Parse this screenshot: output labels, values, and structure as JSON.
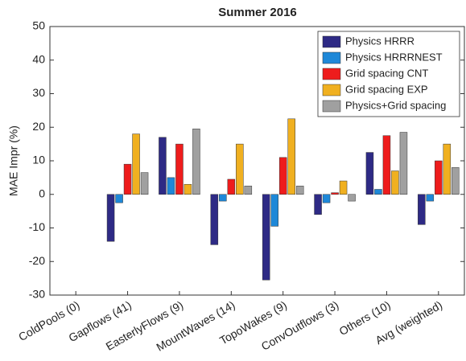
{
  "chart_data": {
    "type": "bar",
    "title": "Summer 2016",
    "y_label": "MAE Impr (%)",
    "categories": [
      "ColdPools (0)",
      "Gapflows (41)",
      "EasterlyFlows (9)",
      "MountWaves (14)",
      "TopoWakes (9)",
      "ConvOutflows (3)",
      "Others (10)",
      "Avg (weighted)"
    ],
    "series": [
      {
        "name": "Physics HRRR",
        "color": "#2e2a85",
        "values": [
          0,
          -14,
          17,
          -15,
          -25.5,
          -6,
          12.5,
          -9
        ]
      },
      {
        "name": "Physics HRRRNEST",
        "color": "#1e88d8",
        "values": [
          0,
          -2.5,
          5,
          -2,
          -9.5,
          -2.5,
          1.5,
          -2
        ]
      },
      {
        "name": "Grid spacing CNT",
        "color": "#ee1c1c",
        "values": [
          0,
          9,
          15,
          4.5,
          11,
          0.5,
          17.5,
          10
        ]
      },
      {
        "name": "Grid spacing EXP",
        "color": "#f0b020",
        "values": [
          0,
          18,
          3,
          15,
          22.5,
          4,
          7,
          15
        ]
      },
      {
        "name": "Physics+Grid spacing",
        "color": "#a0a0a0",
        "values": [
          0,
          6.5,
          19.5,
          2.5,
          2.5,
          -2,
          18.5,
          8
        ]
      }
    ],
    "ylim": [
      -30,
      50
    ],
    "yticks": [
      -30,
      -20,
      -10,
      0,
      10,
      20,
      30,
      40,
      50
    ],
    "legend": "top-right"
  }
}
